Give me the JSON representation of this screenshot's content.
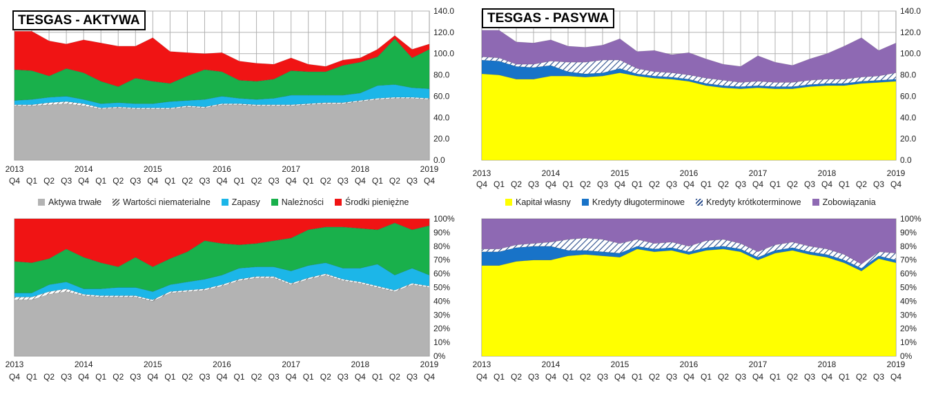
{
  "colors": {
    "gray": "#b3b3b3",
    "hatch": "#ffffff",
    "cyan": "#1cb6e8",
    "green": "#19b04b",
    "red": "#f01414",
    "yellow": "#ffff00",
    "blue": "#1873c8",
    "purple": "#8e69b3"
  },
  "chart_data": [
    {
      "id": "aktywa",
      "type": "area",
      "stacked": true,
      "title": "TESGAS - AKTYWA",
      "y_ticks": [
        "0.0",
        "20.0",
        "40.0",
        "60.0",
        "80.0",
        "100.0",
        "120.0",
        "140.0"
      ],
      "ylim": [
        0,
        140
      ],
      "x_years": [
        "2013",
        "2014",
        "2015",
        "2016",
        "2017",
        "2018",
        "2019"
      ],
      "x_quarters": [
        "Q4",
        "Q1",
        "Q2",
        "Q3",
        "Q4",
        "Q1",
        "Q2",
        "Q3",
        "Q4",
        "Q1",
        "Q2",
        "Q3",
        "Q4",
        "Q1",
        "Q2",
        "Q3",
        "Q4",
        "Q1",
        "Q2",
        "Q3",
        "Q4",
        "Q1",
        "Q2",
        "Q3",
        "Q4"
      ],
      "series": [
        {
          "name": "Aktywa trwałe",
          "color_key": "gray",
          "values": [
            51,
            51,
            52,
            53,
            51,
            48,
            49,
            48,
            48,
            48,
            50,
            49,
            52,
            52,
            51,
            51,
            51,
            52,
            53,
            53,
            55,
            57,
            58,
            58,
            57
          ]
        },
        {
          "name": "Wartości niematerialne",
          "color_key": "hatch",
          "values": [
            1,
            1,
            2,
            2,
            2,
            1,
            1,
            1,
            1,
            1,
            1,
            1,
            1,
            1,
            1,
            1,
            1,
            1,
            1,
            1,
            1,
            1,
            1,
            1,
            1
          ]
        },
        {
          "name": "Zapasy",
          "color_key": "cyan",
          "values": [
            4,
            5,
            5,
            5,
            4,
            4,
            4,
            4,
            4,
            6,
            5,
            7,
            7,
            5,
            5,
            6,
            9,
            8,
            7,
            7,
            7,
            12,
            12,
            9,
            9
          ]
        },
        {
          "name": "Należności",
          "color_key": "green",
          "values": [
            29,
            27,
            20,
            26,
            25,
            21,
            15,
            24,
            21,
            17,
            23,
            28,
            23,
            17,
            17,
            18,
            23,
            22,
            22,
            28,
            29,
            27,
            43,
            28,
            37
          ]
        },
        {
          "name": "Środki pieniężne",
          "color_key": "red",
          "values": [
            36,
            37,
            33,
            23,
            31,
            36,
            38,
            30,
            41,
            30,
            22,
            15,
            18,
            18,
            17,
            14,
            12,
            7,
            5,
            5,
            4,
            7,
            3,
            8,
            5
          ]
        }
      ]
    },
    {
      "id": "pasywa",
      "type": "area",
      "stacked": true,
      "title": "TESGAS - PASYWA",
      "y_ticks": [
        "0.0",
        "20.0",
        "40.0",
        "60.0",
        "80.0",
        "100.0",
        "120.0",
        "140.0"
      ],
      "ylim": [
        0,
        140
      ],
      "x_years": [
        "2013",
        "2014",
        "2015",
        "2016",
        "2017",
        "2018",
        "2019"
      ],
      "x_quarters": [
        "Q4",
        "Q1",
        "Q2",
        "Q3",
        "Q4",
        "Q1",
        "Q2",
        "Q3",
        "Q4",
        "Q1",
        "Q2",
        "Q3",
        "Q4",
        "Q1",
        "Q2",
        "Q3",
        "Q4",
        "Q1",
        "Q2",
        "Q3",
        "Q4",
        "Q1",
        "Q2",
        "Q3",
        "Q4"
      ],
      "series": [
        {
          "name": "Kapitał własny",
          "color_key": "yellow",
          "values": [
            81,
            80,
            76,
            76,
            79,
            79,
            78,
            79,
            82,
            79,
            77,
            76,
            74,
            70,
            68,
            67,
            68,
            67,
            67,
            69,
            70,
            70,
            72,
            73,
            74
          ]
        },
        {
          "name": "Kredyty długoterminowe",
          "color_key": "blue",
          "values": [
            13,
            13,
            12,
            11,
            10,
            4,
            3,
            3,
            4,
            2,
            2,
            2,
            2,
            2,
            2,
            2,
            2,
            2,
            2,
            2,
            2,
            2,
            2,
            2,
            2
          ]
        },
        {
          "name": "Kredyty krótkoterminowe",
          "color_key": "hatch",
          "values": [
            3,
            3,
            2,
            3,
            4,
            9,
            11,
            12,
            8,
            5,
            4,
            4,
            4,
            5,
            5,
            4,
            4,
            4,
            4,
            4,
            4,
            4,
            4,
            4,
            6
          ]
        },
        {
          "name": "Zobowiązania",
          "color_key": "purple",
          "values": [
            25,
            26,
            21,
            20,
            20,
            15,
            14,
            14,
            20,
            16,
            20,
            17,
            21,
            18,
            15,
            15,
            24,
            19,
            16,
            20,
            24,
            31,
            37,
            24,
            28
          ]
        }
      ]
    },
    {
      "id": "aktywa_pct",
      "type": "area",
      "stacked": true,
      "y_ticks": [
        "0%",
        "10%",
        "20%",
        "30%",
        "40%",
        "50%",
        "60%",
        "70%",
        "80%",
        "90%",
        "100%"
      ],
      "ylim": [
        0,
        100
      ],
      "x_years": [
        "2013",
        "2014",
        "2015",
        "2016",
        "2017",
        "2018",
        "2019"
      ],
      "x_quarters": [
        "Q4",
        "Q1",
        "Q2",
        "Q3",
        "Q4",
        "Q1",
        "Q2",
        "Q3",
        "Q4",
        "Q1",
        "Q2",
        "Q3",
        "Q4",
        "Q1",
        "Q2",
        "Q3",
        "Q4",
        "Q1",
        "Q2",
        "Q3",
        "Q4",
        "Q1",
        "Q2",
        "Q3",
        "Q4"
      ],
      "series": [
        {
          "name": "Aktywa trwałe",
          "color_key": "gray",
          "values": [
            41,
            41,
            45,
            47,
            44,
            43,
            43,
            43,
            40,
            46,
            47,
            48,
            51,
            55,
            57,
            57,
            52,
            56,
            59,
            55,
            53,
            50,
            47,
            52,
            50
          ]
        },
        {
          "name": "Wartości niematerialne",
          "color_key": "hatch",
          "values": [
            2,
            2,
            2,
            2,
            1,
            1,
            1,
            1,
            1,
            1,
            1,
            1,
            1,
            1,
            1,
            1,
            1,
            1,
            1,
            1,
            1,
            1,
            1,
            1,
            1
          ]
        },
        {
          "name": "Zapasy",
          "color_key": "cyan",
          "values": [
            3,
            3,
            5,
            5,
            4,
            5,
            6,
            6,
            6,
            5,
            6,
            7,
            7,
            8,
            7,
            7,
            9,
            9,
            8,
            8,
            10,
            16,
            11,
            11,
            8
          ]
        },
        {
          "name": "Należności",
          "color_key": "green",
          "values": [
            23,
            22,
            19,
            24,
            23,
            19,
            15,
            22,
            18,
            19,
            22,
            28,
            23,
            17,
            17,
            19,
            24,
            26,
            26,
            30,
            29,
            25,
            38,
            28,
            36
          ]
        },
        {
          "name": "Środki pieniężne",
          "color_key": "red",
          "values": [
            31,
            32,
            29,
            22,
            28,
            32,
            35,
            28,
            35,
            29,
            24,
            16,
            18,
            19,
            18,
            16,
            14,
            8,
            6,
            6,
            7,
            8,
            3,
            8,
            5
          ]
        }
      ]
    },
    {
      "id": "pasywa_pct",
      "type": "area",
      "stacked": true,
      "y_ticks": [
        "0%",
        "10%",
        "20%",
        "30%",
        "40%",
        "50%",
        "60%",
        "70%",
        "80%",
        "90%",
        "100%"
      ],
      "ylim": [
        0,
        100
      ],
      "x_years": [
        "2013",
        "2014",
        "2015",
        "2016",
        "2017",
        "2018",
        "2019"
      ],
      "x_quarters": [
        "Q4",
        "Q1",
        "Q2",
        "Q3",
        "Q4",
        "Q1",
        "Q2",
        "Q3",
        "Q4",
        "Q1",
        "Q2",
        "Q3",
        "Q4",
        "Q1",
        "Q2",
        "Q3",
        "Q4",
        "Q1",
        "Q2",
        "Q3",
        "Q4",
        "Q1",
        "Q2",
        "Q3",
        "Q4"
      ],
      "series": [
        {
          "name": "Kapitał własny",
          "color_key": "yellow",
          "values": [
            66,
            66,
            69,
            70,
            70,
            73,
            74,
            73,
            72,
            78,
            76,
            77,
            74,
            77,
            78,
            76,
            70,
            75,
            77,
            74,
            72,
            68,
            62,
            71,
            68
          ]
        },
        {
          "name": "Kredyty długoterminowe",
          "color_key": "blue",
          "values": [
            10,
            10,
            10,
            10,
            10,
            4,
            3,
            3,
            3,
            2,
            2,
            2,
            2,
            2,
            2,
            2,
            2,
            2,
            2,
            2,
            2,
            2,
            2,
            2,
            2
          ]
        },
        {
          "name": "Kredyty krótkoterminowe",
          "color_key": "hatch",
          "values": [
            2,
            2,
            2,
            2,
            3,
            8,
            9,
            9,
            7,
            5,
            4,
            4,
            4,
            5,
            5,
            4,
            4,
            4,
            4,
            4,
            4,
            4,
            3,
            3,
            5
          ]
        },
        {
          "name": "Zobowiązania",
          "color_key": "purple",
          "values": [
            22,
            22,
            19,
            18,
            17,
            15,
            14,
            15,
            18,
            15,
            18,
            17,
            20,
            16,
            15,
            18,
            24,
            19,
            17,
            20,
            22,
            26,
            33,
            24,
            25
          ]
        }
      ]
    }
  ],
  "legend_aktywa": [
    "Aktywa trwałe",
    "Wartości niematerialne",
    "Zapasy",
    "Należności",
    "Środki pieniężne"
  ],
  "legend_pasywa": [
    "Kapitał własny",
    "Kredyty długoterminowe",
    "Kredyty krótkoterminowe",
    "Zobowiązania"
  ]
}
